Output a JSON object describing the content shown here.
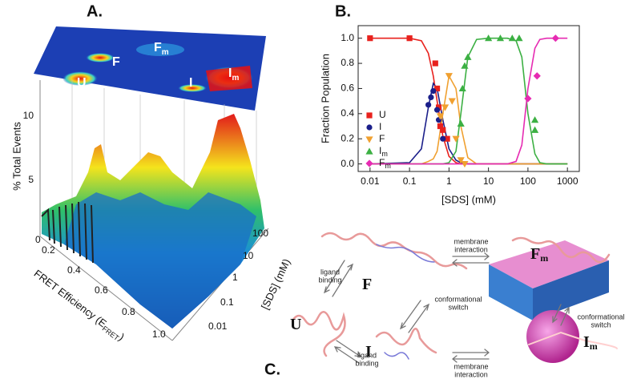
{
  "panel_labels": {
    "a": "A.",
    "b": "B.",
    "c": "C."
  },
  "panel_a": {
    "z_label": "% Total Events",
    "z_ticks": [
      "5",
      "10"
    ],
    "x_label": "FRET Efficiency (E",
    "x_label_sub": "FRET",
    "x_label_end": ")",
    "x_ticks": [
      "0",
      "0.2",
      "0.4",
      "0.6",
      "0.8",
      "1.0"
    ],
    "y_label": "[SDS] (mM)",
    "y_ticks": [
      "0.01",
      "0.1",
      "1",
      "10",
      "100"
    ],
    "map_labels": [
      {
        "text": "U",
        "sub": ""
      },
      {
        "text": "F",
        "sub": ""
      },
      {
        "text": "F",
        "sub": "m"
      },
      {
        "text": "I",
        "sub": ""
      },
      {
        "text": "I",
        "sub": "m"
      }
    ]
  },
  "chart_data": {
    "type": "scatter",
    "x_label": "[SDS] (mM)",
    "y_label": "Fraction Population",
    "log_x": true,
    "xlim": [
      0.005,
      2000
    ],
    "xticks": [
      0.01,
      0.1,
      1,
      10,
      100,
      1000
    ],
    "ylim": [
      -0.06,
      1.1
    ],
    "yticks": [
      {
        "value": 0,
        "label": "0.0"
      },
      {
        "value": 0.2,
        "label": "0.2"
      },
      {
        "value": 0.4,
        "label": "0.4"
      },
      {
        "value": 0.6,
        "label": "0.6"
      },
      {
        "value": 0.8,
        "label": "0.8"
      },
      {
        "value": 1,
        "label": "1.0"
      }
    ],
    "legend": "upper left",
    "fit_x": [
      0.01,
      0.1,
      0.2,
      0.3,
      0.4,
      0.5,
      0.7,
      1,
      1.5,
      2,
      3,
      5,
      10,
      30,
      50,
      70,
      100,
      150,
      200,
      300,
      500,
      1000
    ],
    "series": [
      {
        "name": "U",
        "name_sub": "",
        "color": "#e8211d",
        "marker": "square",
        "x": [
          0.01,
          0.1,
          0.45,
          0.5,
          0.55,
          0.6,
          0.7,
          0.9
        ],
        "values": [
          1,
          1,
          0.8,
          0.6,
          0.45,
          0.3,
          0.27,
          0.2
        ],
        "fit_values": [
          1,
          1,
          0.98,
          0.88,
          0.7,
          0.5,
          0.22,
          0.06,
          0.01,
          0,
          0,
          0,
          0,
          0,
          0,
          0,
          0,
          0,
          0,
          0,
          0,
          0
        ]
      },
      {
        "name": "I",
        "name_sub": "",
        "color": "#1b1f8a",
        "marker": "circle",
        "x": [
          0.3,
          0.35,
          0.4,
          0.5,
          0.55,
          0.7
        ],
        "values": [
          0.47,
          0.53,
          0.58,
          0.43,
          0.35,
          0.2
        ],
        "fit_values": [
          0,
          0.01,
          0.12,
          0.45,
          0.64,
          0.6,
          0.35,
          0.12,
          0.03,
          0.01,
          0,
          0,
          0,
          0,
          0,
          0,
          0,
          0,
          0,
          0,
          0,
          0
        ]
      },
      {
        "name": "F",
        "name_sub": "",
        "color": "#f0a030",
        "marker": "triangle-down",
        "x": [
          0.6,
          0.8,
          1,
          1.2,
          1.5,
          2,
          2.5
        ],
        "values": [
          0.38,
          0.45,
          0.7,
          0.5,
          0.2,
          0.03,
          0
        ],
        "fit_values": [
          0,
          0,
          0,
          0.02,
          0.04,
          0.1,
          0.4,
          0.7,
          0.6,
          0.3,
          0.05,
          0,
          0,
          0,
          0,
          0,
          0,
          0,
          0,
          0,
          0,
          0
        ]
      },
      {
        "name": "I",
        "name_sub": "m",
        "color": "#3cb043",
        "marker": "triangle-up",
        "x": [
          2,
          2.2,
          2.5,
          3,
          10,
          20,
          40,
          60,
          150,
          150
        ],
        "values": [
          0.32,
          0.6,
          0.78,
          0.85,
          1,
          1,
          1,
          1,
          0.35,
          0.27
        ],
        "fit_values": [
          0,
          0,
          0,
          0,
          0,
          0,
          0,
          0.01,
          0.1,
          0.4,
          0.85,
          0.99,
          1,
          1,
          0.98,
          0.85,
          0.4,
          0.08,
          0.01,
          0,
          0,
          0
        ]
      },
      {
        "name": "F",
        "name_sub": "m",
        "color": "#e62bb2",
        "marker": "diamond",
        "x": [
          100,
          170,
          500
        ],
        "values": [
          0.52,
          0.7,
          1
        ],
        "fit_values": [
          0,
          0,
          0,
          0,
          0,
          0,
          0,
          0,
          0,
          0,
          0,
          0,
          0,
          0,
          0.02,
          0.15,
          0.6,
          0.92,
          0.99,
          1,
          1,
          1
        ]
      }
    ]
  },
  "panel_c": {
    "states": [
      {
        "text": "F",
        "sub": ""
      },
      {
        "text": "F",
        "sub": "m"
      },
      {
        "text": "U",
        "sub": ""
      },
      {
        "text": "I",
        "sub": ""
      },
      {
        "text": "I",
        "sub": "m"
      }
    ],
    "notes": [
      [
        "membrane",
        "interaction"
      ],
      [
        "ligand",
        "binding"
      ],
      [
        "conformational",
        "switch"
      ],
      [
        "conformational",
        "switch"
      ],
      [
        "ligand",
        "binding"
      ],
      [
        "membrane",
        "interaction"
      ]
    ]
  }
}
